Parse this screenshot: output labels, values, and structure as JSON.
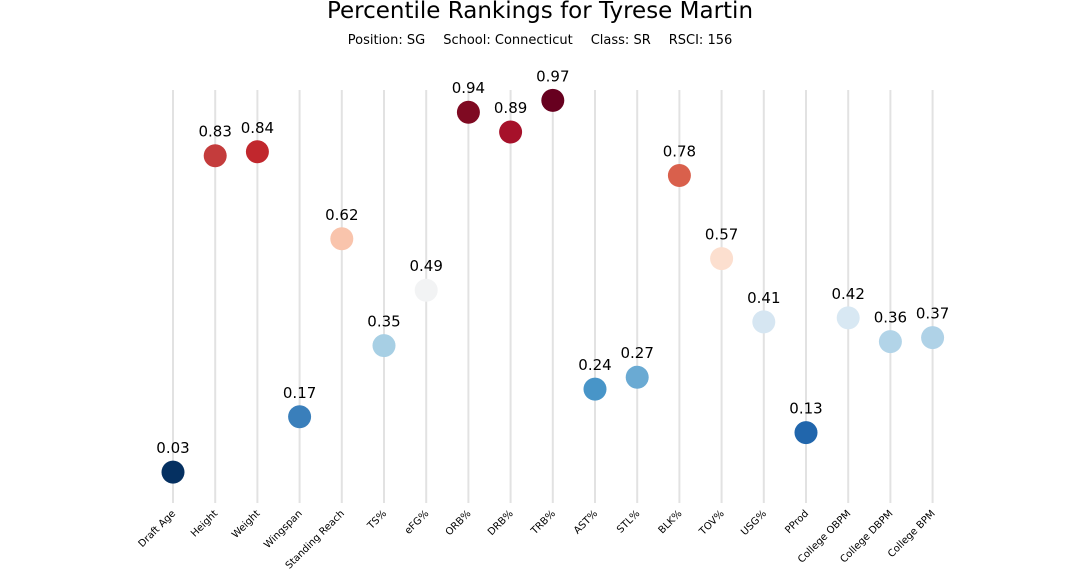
{
  "header": {
    "title": "Percentile Rankings for Tyrese Martin",
    "position": "Position: SG",
    "school": "School: Connecticut",
    "class": "Class: SR",
    "rsci": "RSCI: 156"
  },
  "chart_data": {
    "type": "scatter",
    "title": "Percentile Rankings for Tyrese Martin",
    "xlabel": "",
    "ylabel": "",
    "ylim": [
      0,
      1
    ],
    "grid": "vertical lines at each category",
    "legend": "none",
    "color_scale": "RdBu_r (blue = low, red = high)",
    "categories": [
      "Draft Age",
      "Height",
      "Weight",
      "Wingspan",
      "Standing Reach",
      "TS%",
      "eFG%",
      "ORB%",
      "DRB%",
      "TRB%",
      "AST%",
      "STL%",
      "BLK%",
      "TOV%",
      "USG%",
      "PProd",
      "College OBPM",
      "College DBPM",
      "College BPM"
    ],
    "values": [
      0.03,
      0.83,
      0.84,
      0.17,
      0.62,
      0.35,
      0.49,
      0.94,
      0.89,
      0.97,
      0.24,
      0.27,
      0.78,
      0.57,
      0.41,
      0.13,
      0.42,
      0.36,
      0.37
    ],
    "labels": [
      "0.03",
      "0.83",
      "0.84",
      "0.17",
      "0.62",
      "0.35",
      "0.49",
      "0.94",
      "0.89",
      "0.97",
      "0.24",
      "0.27",
      "0.78",
      "0.57",
      "0.41",
      "0.13",
      "0.42",
      "0.36",
      "0.37"
    ],
    "colors": [
      "#053061",
      "#c43c3c",
      "#c1272d",
      "#3a7fbb",
      "#f9c4ac",
      "#a7cfe4",
      "#f2f3f4",
      "#7f0a22",
      "#a6112a",
      "#67001f",
      "#4895c8",
      "#6aaad3",
      "#d9604c",
      "#fcdfcf",
      "#d6e6f2",
      "#2166ac",
      "#d8e8f3",
      "#b2d4e8",
      "#afd2e7"
    ]
  }
}
